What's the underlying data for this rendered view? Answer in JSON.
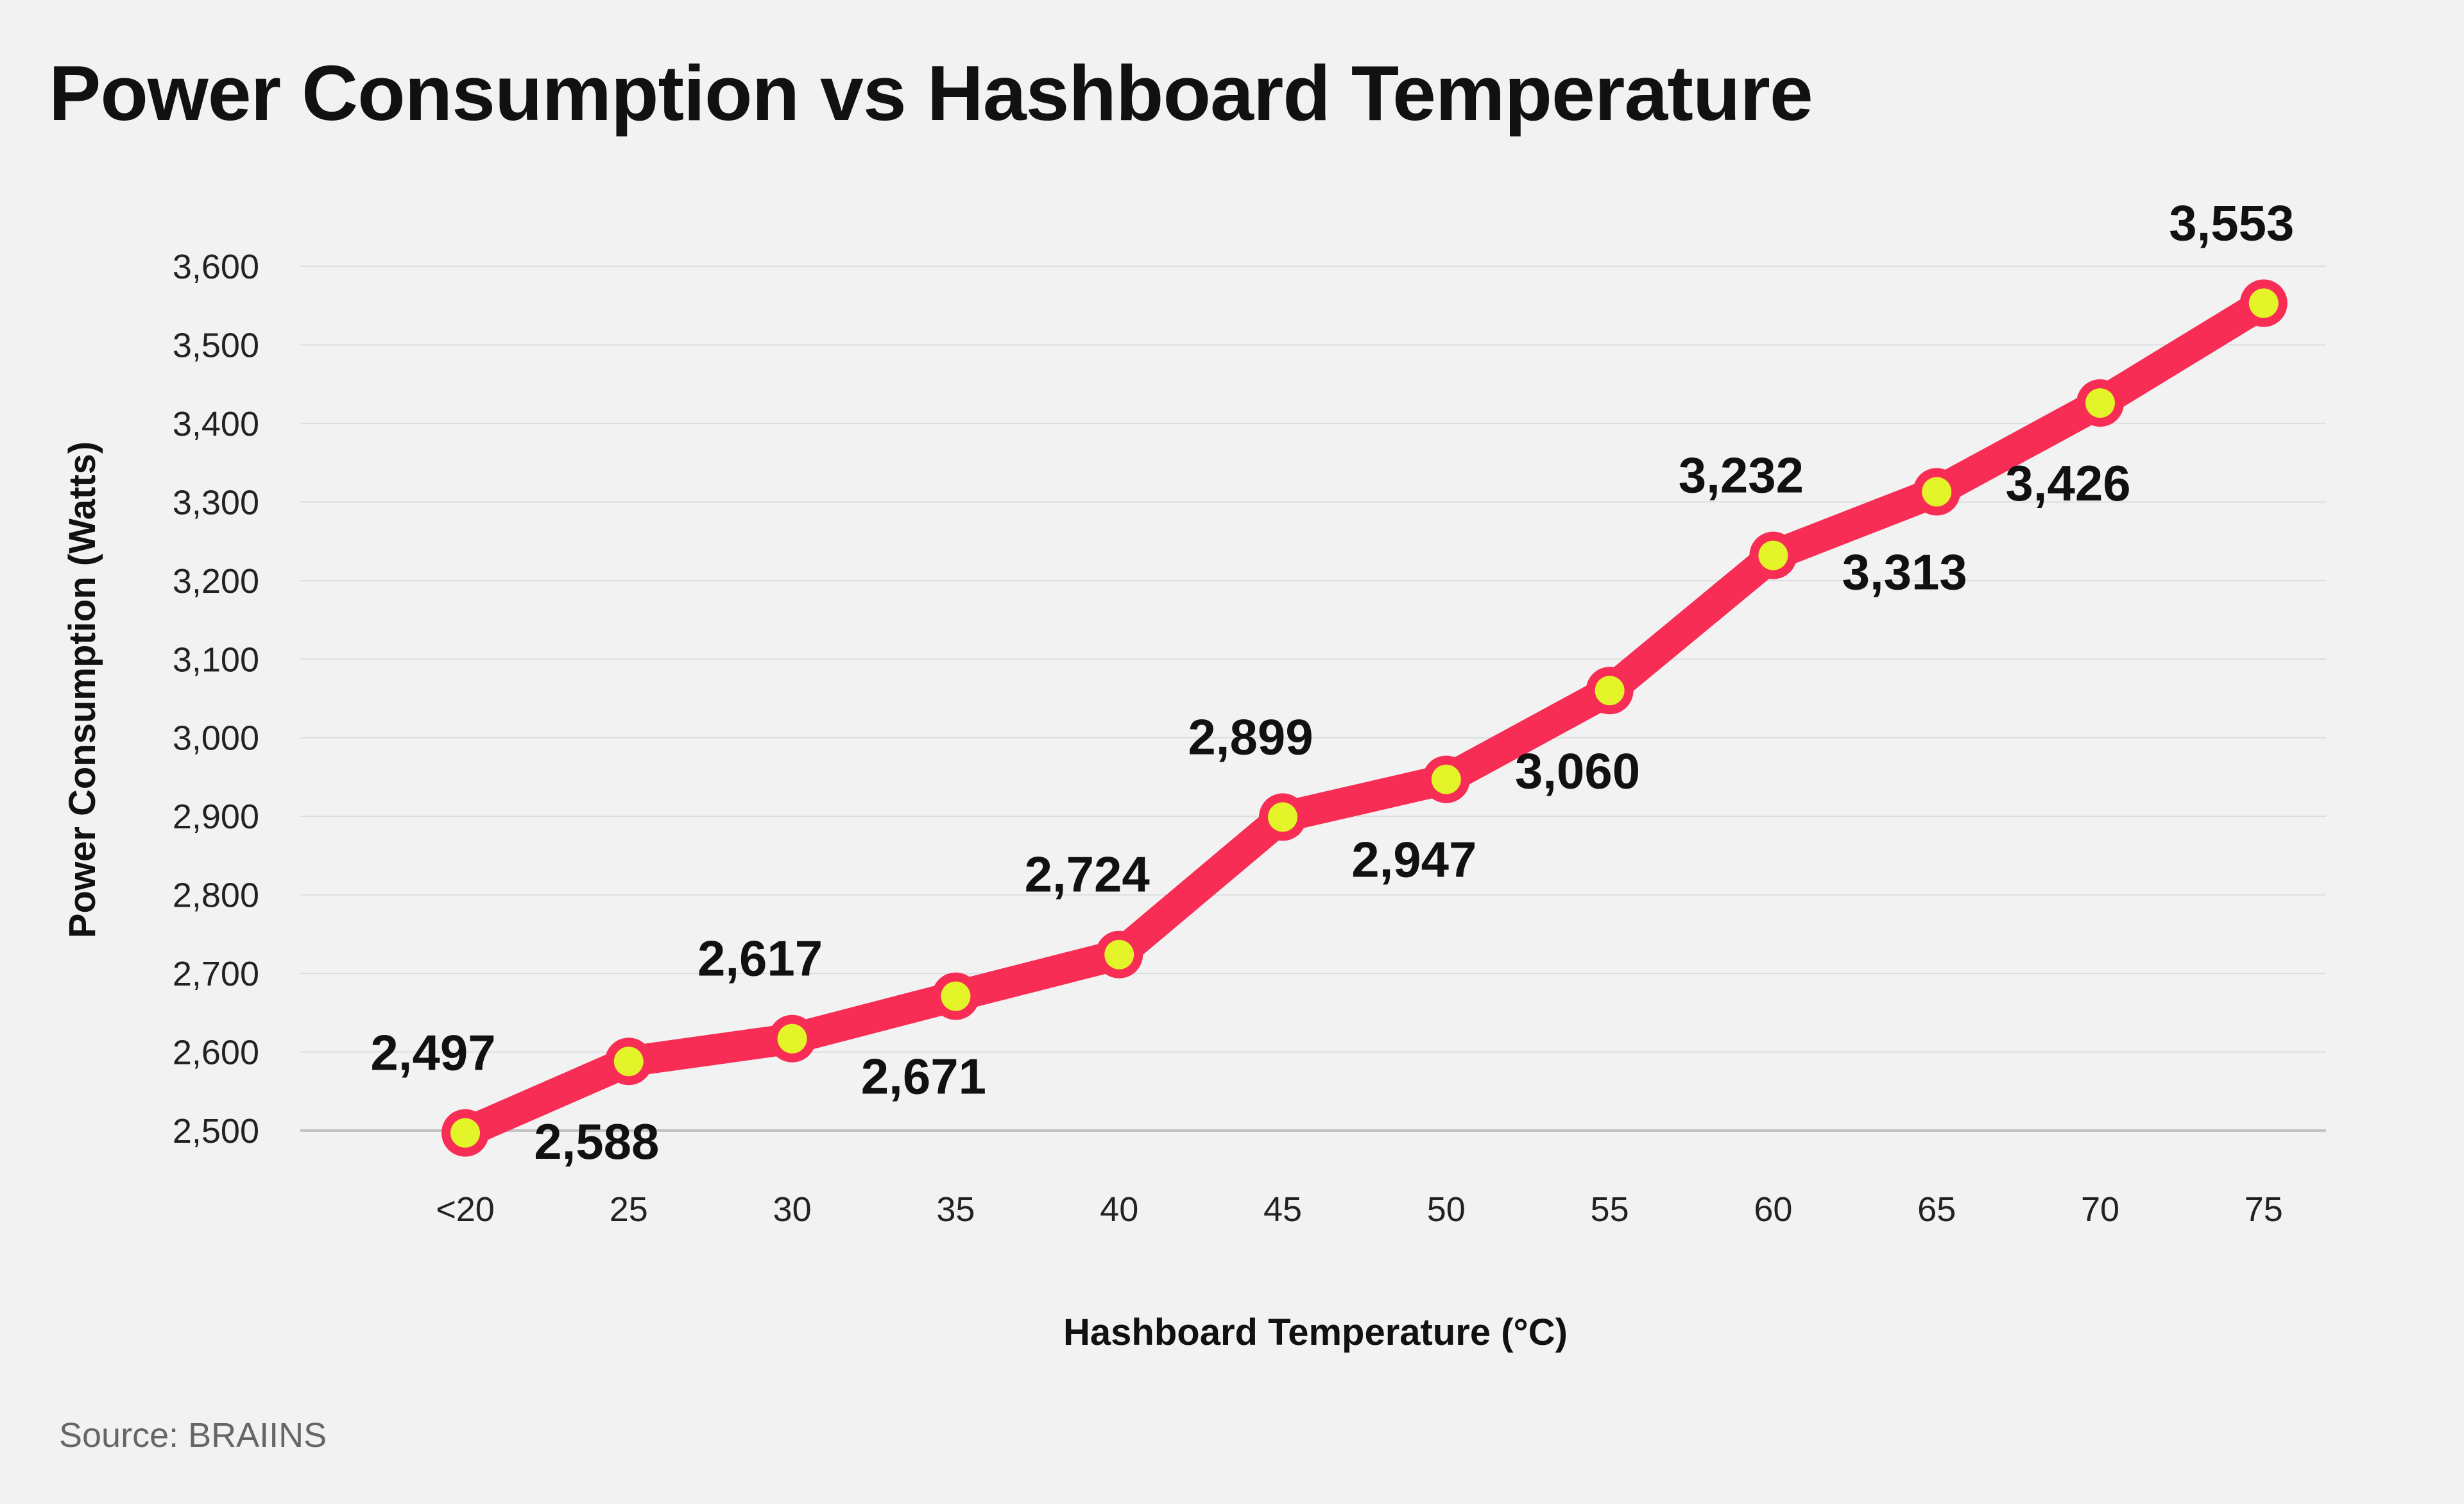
{
  "title": "Power Consumption vs Hashboard Temperature",
  "source": "Source: BRAIINS",
  "colors": {
    "line": "#f72d55",
    "marker_fill": "#e3f528",
    "background": "#f2f2f2",
    "grid": "#dddddd"
  },
  "chart_data": {
    "type": "line",
    "title": "Power Consumption vs Hashboard Temperature",
    "xlabel": "Hashboard Temperature (°C)",
    "ylabel": "Power Consumption (Watts)",
    "categories": [
      "<20",
      "25",
      "30",
      "35",
      "40",
      "45",
      "50",
      "55",
      "60",
      "65",
      "70",
      "75"
    ],
    "values": [
      2497,
      2588,
      2617,
      2671,
      2724,
      2899,
      2947,
      3060,
      3232,
      3313,
      3426,
      3553
    ],
    "data_labels": [
      "2,497",
      "2,588",
      "2,617",
      "2,671",
      "2,724",
      "2,899",
      "2,947",
      "3,060",
      "3,232",
      "3,313",
      "3,426",
      "3,553"
    ],
    "label_positions": [
      "above",
      "below",
      "above",
      "below",
      "above",
      "above",
      "below",
      "below",
      "above",
      "below",
      "below",
      "above"
    ],
    "ylim": [
      2500,
      3600
    ],
    "yticks": [
      2500,
      2600,
      2700,
      2800,
      2900,
      3000,
      3100,
      3200,
      3300,
      3400,
      3500,
      3600
    ],
    "ytick_labels": [
      "2,500",
      "2,600",
      "2,700",
      "2,800",
      "2,900",
      "3,000",
      "3,100",
      "3,200",
      "3,300",
      "3,400",
      "3,500",
      "3,600"
    ],
    "grid": true,
    "legend": "none"
  }
}
